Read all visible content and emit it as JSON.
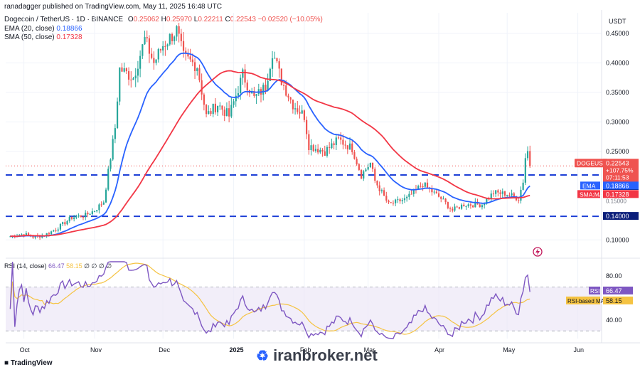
{
  "header": {
    "publisher": "ranadagger published on TradingView.com, May 11, 2025 16:48 UTC",
    "symbol_line": "Dogecoin / TetherUS · 1D · BINANCE",
    "ohlc": {
      "o_label": "O",
      "o": "0.25062",
      "h_label": "H",
      "h": "0.25970",
      "l_label": "L",
      "l": "0.22211",
      "c_label": "C",
      "c": "0.22543",
      "chg": "−0.02520 (−10.05%)"
    },
    "ema_label": "EMA (20, close)",
    "ema_value": "0.18866",
    "sma_label": "SMA (50, close)",
    "sma_value": "0.17328",
    "currency": "USDT"
  },
  "colors": {
    "up": "#26a69a",
    "down": "#ef5350",
    "ema": "#2962ff",
    "sma": "#f23645",
    "rsi": "#7e57c2",
    "rsi_ma": "#f5c342",
    "level": "#1d3fd6",
    "grid": "#f0f3fa"
  },
  "chart_data": [
    {
      "type": "candlestick",
      "title": "Dogecoin / TetherUS · 1D · BINANCE",
      "yaxis_ticks": [
        "0.45000",
        "0.40000",
        "0.35000",
        "0.30000",
        "0.25000",
        "0.10000"
      ],
      "y_range": [
        0.075,
        0.485
      ],
      "xaxis_ticks": [
        "Oct",
        "Nov",
        "Dec",
        "2025",
        "Feb",
        "Mar",
        "Apr",
        "May",
        "Jun"
      ],
      "anchors": [
        [
          "2024-09-25",
          0.106
        ],
        [
          "2024-10-01",
          0.11
        ],
        [
          "2024-10-05",
          0.105
        ],
        [
          "2024-10-10",
          0.108
        ],
        [
          "2024-10-15",
          0.118
        ],
        [
          "2024-10-22",
          0.138
        ],
        [
          "2024-10-28",
          0.142
        ],
        [
          "2024-11-01",
          0.15
        ],
        [
          "2024-11-05",
          0.165
        ],
        [
          "2024-11-10",
          0.29
        ],
        [
          "2024-11-12",
          0.39
        ],
        [
          "2024-11-18",
          0.375
        ],
        [
          "2024-11-23",
          0.44
        ],
        [
          "2024-11-27",
          0.4
        ],
        [
          "2024-12-01",
          0.43
        ],
        [
          "2024-12-07",
          0.455
        ],
        [
          "2024-12-10",
          0.41
        ],
        [
          "2024-12-16",
          0.395
        ],
        [
          "2024-12-20",
          0.31
        ],
        [
          "2024-12-25",
          0.33
        ],
        [
          "2024-12-30",
          0.31
        ],
        [
          "2025-01-05",
          0.38
        ],
        [
          "2025-01-10",
          0.34
        ],
        [
          "2025-01-15",
          0.36
        ],
        [
          "2025-01-18",
          0.42
        ],
        [
          "2025-01-22",
          0.37
        ],
        [
          "2025-01-27",
          0.33
        ],
        [
          "2025-02-01",
          0.31
        ],
        [
          "2025-02-03",
          0.26
        ],
        [
          "2025-02-10",
          0.25
        ],
        [
          "2025-02-16",
          0.27
        ],
        [
          "2025-02-22",
          0.255
        ],
        [
          "2025-02-26",
          0.21
        ],
        [
          "2025-03-02",
          0.23
        ],
        [
          "2025-03-04",
          0.2
        ],
        [
          "2025-03-10",
          0.16
        ],
        [
          "2025-03-18",
          0.17
        ],
        [
          "2025-03-25",
          0.195
        ],
        [
          "2025-03-28",
          0.185
        ],
        [
          "2025-04-02",
          0.17
        ],
        [
          "2025-04-07",
          0.15
        ],
        [
          "2025-04-12",
          0.16
        ],
        [
          "2025-04-20",
          0.16
        ],
        [
          "2025-04-25",
          0.18
        ],
        [
          "2025-05-01",
          0.178
        ],
        [
          "2025-05-06",
          0.17
        ],
        [
          "2025-05-08",
          0.2
        ],
        [
          "2025-05-09",
          0.24
        ],
        [
          "2025-05-10",
          0.25
        ],
        [
          "2025-05-11",
          0.225
        ]
      ],
      "series": [
        {
          "name": "DOGEUSDT",
          "last": "0.22543",
          "pct": "+107.75%",
          "countdown": "07:11:53"
        },
        {
          "name": "EMA",
          "last": "0.18866"
        },
        {
          "name": "SMA:MA",
          "last": "0.17328"
        }
      ],
      "levels": [
        {
          "value": 0.21,
          "label": "0.21000"
        },
        {
          "value": 0.14,
          "label": "0.14000"
        }
      ],
      "hidden_tick": "0.15000"
    },
    {
      "type": "line",
      "title": "RSI (14, close)",
      "header_values": [
        "66.47",
        "58.15",
        "∅",
        "∅",
        "∅",
        "∅"
      ],
      "yaxis_ticks": [
        "80.00",
        "40.00"
      ],
      "bands": [
        70,
        30
      ],
      "y_range": [
        23,
        93
      ],
      "series": [
        {
          "name": "RSI",
          "last": "66.47"
        },
        {
          "name": "RSI-based MA",
          "last": "58.15"
        }
      ]
    }
  ],
  "watermark": {
    "brand": "iranbroker.net",
    "tv": "TradingView"
  }
}
